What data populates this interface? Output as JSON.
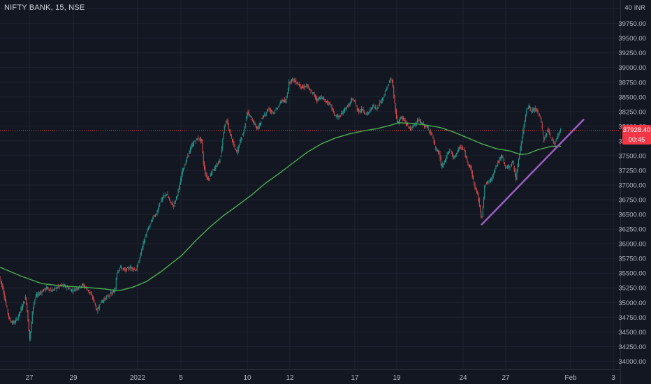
{
  "header": {
    "symbol_title": "NIFTY BANK, 15, NSE",
    "currency_label": "40 INR"
  },
  "price_tag": {
    "last_price": "37928.40",
    "countdown": "00:45",
    "color": "#f23645"
  },
  "colors": {
    "background": "#131722",
    "grid": "#1f2330",
    "up_candle": "#26a69a",
    "down_candle": "#ef5350",
    "moving_average": "#4caf50",
    "trendline": "#9c5ec4",
    "axis_text": "#b2b5be"
  },
  "chart_data": {
    "type": "candlestick",
    "title": "NIFTY BANK, 15, NSE",
    "y_axis": {
      "ticks": [
        "40000.00",
        "39750.00",
        "39500.00",
        "39250.00",
        "39000.00",
        "38750.00",
        "38500.00",
        "38250.00",
        "38000.00",
        "37750.00",
        "37500.00",
        "37250.00",
        "37000.00",
        "36750.00",
        "36500.00",
        "36250.00",
        "36000.00",
        "35750.00",
        "35500.00",
        "35250.00",
        "35000.00",
        "34750.00",
        "34500.00",
        "34250.00",
        "34000.00"
      ],
      "range": [
        33850,
        40150
      ]
    },
    "x_axis": {
      "ticks": [
        "27",
        "29",
        "2022",
        "5",
        "10",
        "12",
        "17",
        "19",
        "24",
        "27",
        "Feb",
        "3"
      ],
      "range": [
        "Dec 24",
        "Feb 3"
      ]
    },
    "grid": true,
    "last_price": 37928.4,
    "price_path": [
      [
        0,
        35450
      ],
      [
        5,
        35250
      ],
      [
        10,
        34950
      ],
      [
        15,
        34700
      ],
      [
        20,
        34650
      ],
      [
        25,
        34700
      ],
      [
        30,
        34850
      ],
      [
        35,
        35000
      ],
      [
        38,
        35100
      ],
      [
        42,
        34600
      ],
      [
        44,
        34350
      ],
      [
        48,
        34900
      ],
      [
        52,
        35100
      ],
      [
        57,
        35150
      ],
      [
        62,
        35200
      ],
      [
        68,
        35250
      ],
      [
        75,
        35200
      ],
      [
        82,
        35250
      ],
      [
        90,
        35300
      ],
      [
        98,
        35250
      ],
      [
        105,
        35200
      ],
      [
        112,
        35250
      ],
      [
        120,
        35300
      ],
      [
        128,
        35200
      ],
      [
        135,
        35050
      ],
      [
        140,
        34850
      ],
      [
        145,
        35000
      ],
      [
        150,
        35050
      ],
      [
        155,
        35100
      ],
      [
        160,
        35150
      ],
      [
        166,
        35200
      ],
      [
        168,
        35500
      ],
      [
        173,
        35600
      ],
      [
        180,
        35550
      ],
      [
        188,
        35600
      ],
      [
        196,
        35550
      ],
      [
        200,
        35700
      ],
      [
        205,
        35950
      ],
      [
        210,
        36150
      ],
      [
        215,
        36300
      ],
      [
        220,
        36450
      ],
      [
        225,
        36500
      ],
      [
        230,
        36700
      ],
      [
        235,
        36800
      ],
      [
        240,
        36850
      ],
      [
        245,
        36700
      ],
      [
        250,
        36650
      ],
      [
        255,
        36850
      ],
      [
        258,
        36950
      ],
      [
        262,
        37250
      ],
      [
        266,
        37350
      ],
      [
        270,
        37500
      ],
      [
        275,
        37650
      ],
      [
        280,
        37750
      ],
      [
        285,
        37800
      ],
      [
        290,
        37750
      ],
      [
        292,
        37400
      ],
      [
        296,
        37150
      ],
      [
        300,
        37100
      ],
      [
        305,
        37250
      ],
      [
        310,
        37300
      ],
      [
        315,
        37400
      ],
      [
        318,
        37550
      ],
      [
        322,
        38000
      ],
      [
        326,
        38100
      ],
      [
        330,
        37900
      ],
      [
        335,
        37700
      ],
      [
        340,
        37550
      ],
      [
        345,
        37750
      ],
      [
        350,
        37900
      ],
      [
        355,
        38250
      ],
      [
        360,
        38150
      ],
      [
        365,
        38050
      ],
      [
        370,
        37950
      ],
      [
        375,
        38100
      ],
      [
        380,
        38200
      ],
      [
        385,
        38300
      ],
      [
        390,
        38250
      ],
      [
        395,
        38250
      ],
      [
        400,
        38350
      ],
      [
        405,
        38450
      ],
      [
        410,
        38400
      ],
      [
        415,
        38750
      ],
      [
        420,
        38800
      ],
      [
        425,
        38750
      ],
      [
        430,
        38700
      ],
      [
        435,
        38650
      ],
      [
        440,
        38700
      ],
      [
        445,
        38600
      ],
      [
        450,
        38550
      ],
      [
        455,
        38450
      ],
      [
        460,
        38500
      ],
      [
        465,
        38450
      ],
      [
        470,
        38400
      ],
      [
        475,
        38350
      ],
      [
        480,
        38200
      ],
      [
        485,
        38150
      ],
      [
        490,
        38200
      ],
      [
        495,
        38300
      ],
      [
        500,
        38350
      ],
      [
        505,
        38450
      ],
      [
        508,
        38450
      ],
      [
        512,
        38300
      ],
      [
        516,
        38250
      ],
      [
        520,
        38300
      ],
      [
        525,
        38200
      ],
      [
        530,
        38250
      ],
      [
        535,
        38350
      ],
      [
        540,
        38300
      ],
      [
        545,
        38400
      ],
      [
        550,
        38500
      ],
      [
        555,
        38650
      ],
      [
        560,
        38800
      ],
      [
        563,
        38750
      ],
      [
        566,
        38400
      ],
      [
        570,
        38050
      ],
      [
        575,
        38150
      ],
      [
        580,
        38100
      ],
      [
        585,
        38000
      ],
      [
        590,
        37950
      ],
      [
        595,
        38050
      ],
      [
        600,
        38100
      ],
      [
        605,
        38050
      ],
      [
        610,
        38000
      ],
      [
        615,
        37950
      ],
      [
        620,
        37850
      ],
      [
        625,
        37600
      ],
      [
        630,
        37550
      ],
      [
        633,
        37300
      ],
      [
        638,
        37400
      ],
      [
        642,
        37550
      ],
      [
        646,
        37600
      ],
      [
        650,
        37450
      ],
      [
        655,
        37550
      ],
      [
        660,
        37650
      ],
      [
        665,
        37600
      ],
      [
        670,
        37400
      ],
      [
        675,
        37300
      ],
      [
        680,
        37000
      ],
      [
        685,
        36850
      ],
      [
        688,
        36600
      ],
      [
        691,
        36400
      ],
      [
        695,
        37000
      ],
      [
        700,
        37050
      ],
      [
        705,
        37100
      ],
      [
        710,
        37300
      ],
      [
        715,
        37400
      ],
      [
        720,
        37500
      ],
      [
        725,
        37300
      ],
      [
        730,
        37300
      ],
      [
        735,
        37400
      ],
      [
        740,
        37100
      ],
      [
        745,
        37550
      ],
      [
        750,
        37900
      ],
      [
        755,
        38300
      ],
      [
        758,
        38350
      ],
      [
        762,
        38250
      ],
      [
        766,
        38300
      ],
      [
        770,
        38250
      ],
      [
        775,
        38150
      ],
      [
        780,
        37750
      ],
      [
        785,
        37950
      ],
      [
        790,
        37800
      ],
      [
        795,
        37700
      ],
      [
        800,
        37850
      ],
      [
        803,
        37928
      ]
    ],
    "moving_average": {
      "name": "",
      "points": [
        [
          0,
          35600
        ],
        [
          30,
          35450
        ],
        [
          60,
          35320
        ],
        [
          90,
          35280
        ],
        [
          120,
          35260
        ],
        [
          150,
          35230
        ],
        [
          170,
          35200
        ],
        [
          190,
          35260
        ],
        [
          210,
          35360
        ],
        [
          230,
          35520
        ],
        [
          260,
          35800
        ],
        [
          280,
          36050
        ],
        [
          300,
          36280
        ],
        [
          320,
          36480
        ],
        [
          340,
          36650
        ],
        [
          360,
          36830
        ],
        [
          380,
          37030
        ],
        [
          400,
          37200
        ],
        [
          420,
          37380
        ],
        [
          440,
          37560
        ],
        [
          460,
          37700
        ],
        [
          480,
          37800
        ],
        [
          500,
          37870
        ],
        [
          520,
          37920
        ],
        [
          540,
          37960
        ],
        [
          560,
          38020
        ],
        [
          570,
          38060
        ],
        [
          590,
          38050
        ],
        [
          610,
          38020
        ],
        [
          630,
          37980
        ],
        [
          650,
          37900
        ],
        [
          670,
          37800
        ],
        [
          690,
          37700
        ],
        [
          710,
          37620
        ],
        [
          730,
          37580
        ],
        [
          745,
          37520
        ],
        [
          755,
          37530
        ],
        [
          770,
          37600
        ],
        [
          790,
          37660
        ],
        [
          803,
          37660
        ]
      ]
    },
    "trendline": {
      "name": "",
      "start": [
        689,
        36320
      ],
      "end": [
        836,
        38120
      ]
    }
  }
}
